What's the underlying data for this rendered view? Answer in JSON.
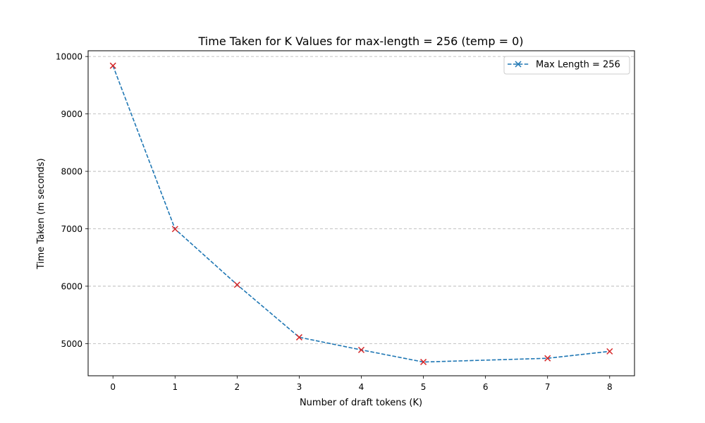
{
  "chart_data": {
    "type": "line",
    "title": "Time Taken for K Values for max-length = 256 (temp = 0)",
    "xlabel": "Number of draft tokens (K)",
    "ylabel": "Time Taken (m seconds)",
    "xlim": [
      -0.4,
      8.4
    ],
    "ylim": [
      4440,
      10100
    ],
    "xticks": [
      0,
      1,
      2,
      3,
      4,
      5,
      6,
      7,
      8
    ],
    "yticks": [
      5000,
      6000,
      7000,
      8000,
      9000,
      10000
    ],
    "grid": "y-axis, dashed",
    "legend_position": "top-right",
    "series": [
      {
        "name": "Max Length = 256",
        "line_color": "#1f77b4",
        "marker_color": "#d62728",
        "line_style": "dashed",
        "marker": "x",
        "x": [
          0,
          1,
          2,
          3,
          4,
          5,
          7,
          8
        ],
        "y": [
          9840,
          6995,
          6025,
          5110,
          4890,
          4680,
          4745,
          4865
        ]
      }
    ]
  }
}
